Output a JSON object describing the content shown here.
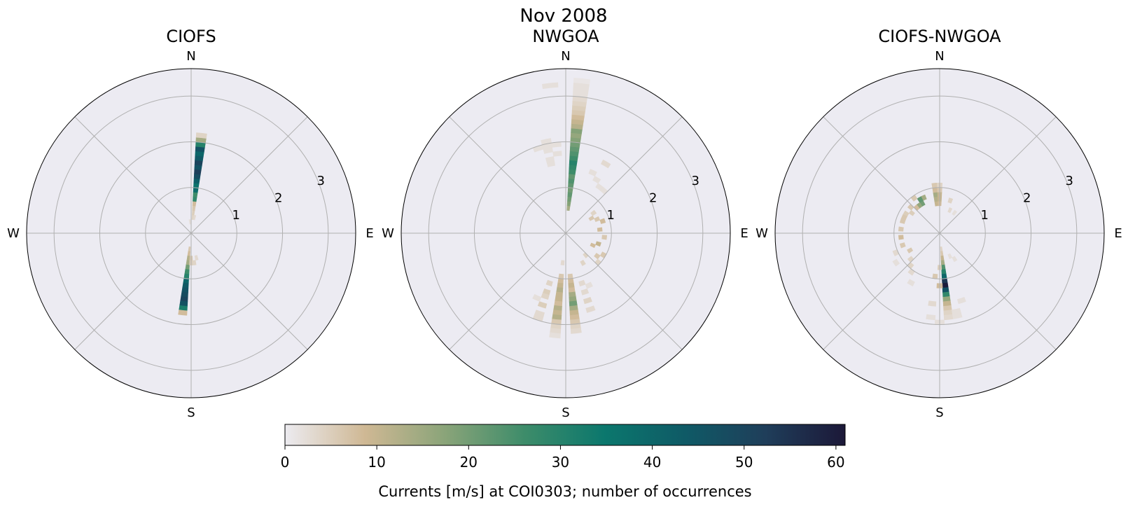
{
  "figure": {
    "suptitle": "Nov 2008",
    "colorbar": {
      "label": "Currents [m/s] at COI0303; number of occurrences",
      "ticks": [
        "0",
        "10",
        "20",
        "30",
        "40",
        "50",
        "60"
      ],
      "tick_values": [
        0,
        10,
        20,
        30,
        40,
        50,
        60
      ],
      "range": [
        0,
        61
      ],
      "colormap": [
        "#ecebf0",
        "#cfb894",
        "#8aa479",
        "#3d8c6a",
        "#0b776d",
        "#0f5a66",
        "#1f3e5a",
        "#1c1838"
      ]
    },
    "background_color": "#ecebf2"
  },
  "chart_data": [
    {
      "type": "polar-bar",
      "title": "CIOFS",
      "direction_labels": [
        "N",
        "E",
        "S",
        "W"
      ],
      "radial_ticks": [
        "1",
        "2",
        "3"
      ],
      "radial_tick_values": [
        1,
        2,
        3
      ],
      "rlim": [
        0,
        3.6
      ],
      "theta_bin_width_deg": 6,
      "r_bin_width": 0.1,
      "cells": [
        [
          6,
          0.3,
          4
        ],
        [
          6,
          0.4,
          5
        ],
        [
          6,
          0.5,
          6
        ],
        [
          6,
          0.6,
          8
        ],
        [
          12,
          0.3,
          3
        ],
        [
          -6,
          0.2,
          2
        ],
        [
          6,
          0.7,
          28
        ],
        [
          6,
          0.8,
          26
        ],
        [
          6,
          0.9,
          38
        ],
        [
          6,
          1.0,
          36
        ],
        [
          6,
          1.1,
          42
        ],
        [
          6,
          1.2,
          48
        ],
        [
          6,
          1.3,
          52
        ],
        [
          6,
          1.4,
          46
        ],
        [
          6,
          1.5,
          50
        ],
        [
          6,
          1.6,
          44
        ],
        [
          6,
          1.7,
          40
        ],
        [
          6,
          1.8,
          46
        ],
        [
          6,
          1.9,
          30
        ],
        [
          6,
          2.0,
          14
        ],
        [
          6,
          2.1,
          4
        ],
        [
          186,
          0.3,
          6
        ],
        [
          186,
          0.4,
          8
        ],
        [
          186,
          0.5,
          12
        ],
        [
          186,
          0.6,
          14
        ],
        [
          186,
          0.7,
          20
        ],
        [
          186,
          0.8,
          26
        ],
        [
          186,
          0.9,
          30
        ],
        [
          186,
          1.0,
          40
        ],
        [
          186,
          1.1,
          44
        ],
        [
          186,
          1.2,
          46
        ],
        [
          186,
          1.3,
          48
        ],
        [
          186,
          1.4,
          50
        ],
        [
          186,
          1.5,
          46
        ],
        [
          186,
          1.6,
          32
        ],
        [
          186,
          1.7,
          8
        ],
        [
          180,
          0.5,
          6
        ],
        [
          180,
          0.6,
          5
        ],
        [
          168,
          0.5,
          3
        ],
        [
          174,
          0.6,
          4
        ]
      ]
    },
    {
      "type": "polar-bar",
      "title": "NWGOA",
      "direction_labels": [
        "N",
        "E",
        "S",
        "W"
      ],
      "radial_ticks": [
        "1",
        "2",
        "3"
      ],
      "radial_tick_values": [
        1,
        2,
        3
      ],
      "rlim": [
        0,
        3.6
      ],
      "theta_bin_width_deg": 6,
      "r_bin_width": 0.1,
      "cells": [
        [
          6,
          0.5,
          14
        ],
        [
          6,
          0.6,
          18
        ],
        [
          6,
          0.7,
          20
        ],
        [
          6,
          0.8,
          22
        ],
        [
          6,
          0.9,
          20
        ],
        [
          6,
          1.0,
          22
        ],
        [
          6,
          1.1,
          24
        ],
        [
          6,
          1.2,
          22
        ],
        [
          6,
          1.3,
          26
        ],
        [
          6,
          1.4,
          28
        ],
        [
          6,
          1.5,
          30
        ],
        [
          6,
          1.6,
          26
        ],
        [
          6,
          1.7,
          24
        ],
        [
          6,
          1.8,
          22
        ],
        [
          6,
          1.9,
          20
        ],
        [
          6,
          2.0,
          18
        ],
        [
          6,
          2.1,
          16
        ],
        [
          6,
          2.2,
          18
        ],
        [
          6,
          2.3,
          12
        ],
        [
          6,
          2.4,
          10
        ],
        [
          6,
          2.5,
          8
        ],
        [
          6,
          2.6,
          6
        ],
        [
          6,
          2.7,
          5
        ],
        [
          6,
          2.8,
          4
        ],
        [
          6,
          2.9,
          3
        ],
        [
          6,
          3.0,
          2
        ],
        [
          6,
          3.1,
          2
        ],
        [
          6,
          3.2,
          2
        ],
        [
          6,
          3.3,
          1
        ],
        [
          -6,
          3.2,
          2
        ],
        [
          -6,
          1.9,
          2
        ],
        [
          -6,
          1.7,
          2
        ],
        [
          -12,
          1.5,
          2
        ],
        [
          -12,
          1.8,
          2
        ],
        [
          -12,
          1.9,
          2
        ],
        [
          -12,
          2.0,
          2
        ],
        [
          -12,
          1.6,
          2
        ],
        [
          -18,
          1.9,
          2
        ],
        [
          24,
          1.4,
          2
        ],
        [
          30,
          1.3,
          2
        ],
        [
          36,
          1.2,
          2
        ],
        [
          42,
          1.2,
          2
        ],
        [
          30,
          1.7,
          3
        ],
        [
          54,
          0.7,
          4
        ],
        [
          60,
          0.6,
          6
        ],
        [
          66,
          0.7,
          6
        ],
        [
          72,
          0.8,
          8
        ],
        [
          84,
          0.7,
          8
        ],
        [
          96,
          0.8,
          6
        ],
        [
          108,
          0.7,
          10
        ],
        [
          114,
          0.6,
          8
        ],
        [
          120,
          0.9,
          6
        ],
        [
          126,
          0.8,
          6
        ],
        [
          132,
          0.9,
          4
        ],
        [
          138,
          0.6,
          4
        ],
        [
          150,
          0.7,
          4
        ],
        [
          186,
          0.6,
          3
        ],
        [
          186,
          0.9,
          6
        ],
        [
          186,
          1.0,
          8
        ],
        [
          186,
          1.1,
          10
        ],
        [
          186,
          1.2,
          12
        ],
        [
          186,
          1.3,
          10
        ],
        [
          186,
          1.4,
          10
        ],
        [
          186,
          1.5,
          8
        ],
        [
          186,
          1.6,
          12
        ],
        [
          186,
          1.7,
          10
        ],
        [
          186,
          1.8,
          12
        ],
        [
          186,
          1.9,
          6
        ],
        [
          186,
          2.0,
          4
        ],
        [
          186,
          2.1,
          3
        ],
        [
          186,
          2.2,
          2
        ],
        [
          174,
          0.9,
          6
        ],
        [
          174,
          1.0,
          8
        ],
        [
          174,
          1.1,
          10
        ],
        [
          174,
          1.2,
          8
        ],
        [
          174,
          1.3,
          14
        ],
        [
          174,
          1.4,
          16
        ],
        [
          174,
          1.5,
          20
        ],
        [
          174,
          1.6,
          14
        ],
        [
          174,
          1.7,
          10
        ],
        [
          174,
          1.8,
          8
        ],
        [
          174,
          1.9,
          6
        ],
        [
          174,
          2.0,
          4
        ],
        [
          174,
          2.1,
          3
        ],
        [
          198,
          1.1,
          4
        ],
        [
          198,
          1.3,
          5
        ],
        [
          198,
          1.4,
          4
        ],
        [
          198,
          1.6,
          5
        ],
        [
          198,
          1.8,
          3
        ],
        [
          198,
          1.9,
          3
        ],
        [
          162,
          1.1,
          3
        ],
        [
          162,
          1.3,
          3
        ],
        [
          162,
          1.5,
          4
        ],
        [
          162,
          1.7,
          3
        ],
        [
          156,
          1.2,
          2
        ],
        [
          204,
          1.5,
          2
        ]
      ]
    },
    {
      "type": "polar-bar",
      "title": "CIOFS-NWGOA",
      "direction_labels": [
        "N",
        "E",
        "S",
        "W"
      ],
      "radial_ticks": [
        "1",
        "2",
        "3"
      ],
      "radial_tick_values": [
        1,
        2,
        3
      ],
      "rlim": [
        0,
        3.6
      ],
      "theta_bin_width_deg": 6,
      "r_bin_width": 0.1,
      "cells": [
        [
          -6,
          0.6,
          10
        ],
        [
          -6,
          0.7,
          12
        ],
        [
          -6,
          0.8,
          14
        ],
        [
          -6,
          0.9,
          8
        ],
        [
          -6,
          1.0,
          6
        ],
        [
          0,
          0.6,
          8
        ],
        [
          0,
          0.7,
          10
        ],
        [
          0,
          0.8,
          10
        ],
        [
          0,
          0.9,
          6
        ],
        [
          0,
          1.0,
          4
        ],
        [
          -24,
          0.8,
          14
        ],
        [
          -30,
          0.7,
          20
        ],
        [
          -30,
          0.8,
          22
        ],
        [
          -36,
          0.7,
          16
        ],
        [
          -42,
          0.7,
          8
        ],
        [
          -36,
          0.9,
          6
        ],
        [
          -48,
          0.8,
          6
        ],
        [
          -54,
          0.7,
          5
        ],
        [
          -60,
          0.8,
          5
        ],
        [
          -66,
          0.8,
          6
        ],
        [
          -72,
          0.8,
          6
        ],
        [
          -84,
          0.8,
          6
        ],
        [
          -96,
          0.8,
          8
        ],
        [
          -108,
          0.8,
          6
        ],
        [
          -120,
          0.7,
          6
        ],
        [
          -132,
          0.8,
          4
        ],
        [
          -138,
          0.9,
          4
        ],
        [
          -144,
          1.0,
          3
        ],
        [
          -150,
          1.2,
          2
        ],
        [
          -114,
          1.0,
          3
        ],
        [
          -124,
          1.1,
          2
        ],
        [
          18,
          0.7,
          4
        ],
        [
          24,
          0.5,
          3
        ],
        [
          36,
          0.5,
          2
        ],
        [
          174,
          0.3,
          4
        ],
        [
          174,
          0.4,
          6
        ],
        [
          174,
          0.5,
          10
        ],
        [
          174,
          0.6,
          14
        ],
        [
          174,
          0.7,
          24
        ],
        [
          174,
          0.8,
          30
        ],
        [
          174,
          0.9,
          40
        ],
        [
          174,
          1.0,
          54
        ],
        [
          174,
          1.1,
          60
        ],
        [
          174,
          1.2,
          46
        ],
        [
          174,
          1.3,
          28
        ],
        [
          174,
          1.4,
          16
        ],
        [
          174,
          1.5,
          10
        ],
        [
          174,
          1.6,
          6
        ],
        [
          174,
          1.7,
          4
        ],
        [
          174,
          1.8,
          3
        ],
        [
          168,
          1.7,
          2
        ],
        [
          168,
          1.8,
          2
        ],
        [
          162,
          1.5,
          2
        ],
        [
          180,
          1.9,
          2
        ],
        [
          186,
          1.8,
          2
        ],
        [
          156,
          0.5,
          2
        ],
        [
          150,
          0.6,
          2
        ],
        [
          186,
          1.5,
          3
        ],
        [
          186,
          0.9,
          6
        ],
        [
          180,
          0.7,
          5
        ],
        [
          180,
          1.1,
          8
        ]
      ]
    }
  ]
}
